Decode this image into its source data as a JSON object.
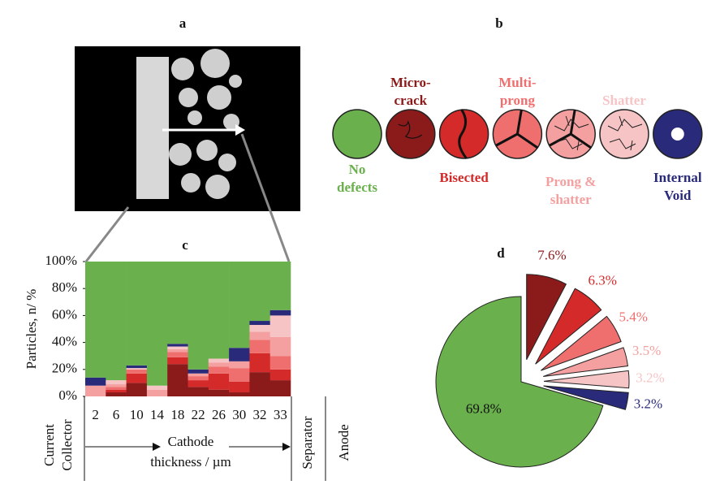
{
  "panel_labels": [
    "a",
    "b",
    "c",
    "d"
  ],
  "defect_types": [
    {
      "lines": [
        "No",
        "defects"
      ],
      "color": "#6ab04c"
    },
    {
      "lines": [
        "Micro-",
        "crack"
      ],
      "color": "#8b1a1a"
    },
    {
      "lines": [
        "Bisected"
      ],
      "color": "#d42a2a"
    },
    {
      "lines": [
        "Multi-",
        "prong"
      ],
      "color": "#ef6f6f"
    },
    {
      "lines": [
        "Prong &",
        "shatter"
      ],
      "color": "#f4a0a0"
    },
    {
      "lines": [
        "Shatter"
      ],
      "color": "#f7c4c6"
    },
    {
      "lines": [
        "Internal",
        "Void"
      ],
      "color": "#2a2a7a"
    }
  ],
  "chart_data": [
    {
      "type": "bar",
      "stacked": true,
      "ylabel": "Particles, n/ %",
      "categories": [
        2,
        6,
        10,
        14,
        18,
        22,
        26,
        30,
        32,
        33
      ],
      "series": [
        {
          "color": "#8b1a1a",
          "values": [
            0,
            3,
            10,
            0,
            24,
            7,
            5,
            3,
            18,
            12
          ]
        },
        {
          "color": "#d42a2a",
          "values": [
            0,
            2,
            7,
            0,
            5,
            5,
            12,
            8,
            14,
            8
          ]
        },
        {
          "color": "#ef6f6f",
          "values": [
            0,
            2,
            3,
            0,
            4,
            3,
            5,
            10,
            10,
            10
          ]
        },
        {
          "color": "#f4a0a0",
          "values": [
            8,
            2,
            0,
            5,
            2,
            2,
            3,
            5,
            6,
            14
          ]
        },
        {
          "color": "#f7c4c6",
          "values": [
            0,
            3,
            1,
            3,
            2,
            0,
            3,
            0,
            5,
            16
          ]
        },
        {
          "color": "#2a2a7a",
          "values": [
            6,
            0,
            2,
            0,
            2,
            3,
            0,
            10,
            3,
            4
          ]
        },
        {
          "color": "#6ab04c",
          "values": [
            86,
            88,
            77,
            92,
            61,
            80,
            72,
            64,
            44,
            36
          ]
        }
      ],
      "ylim": [
        0,
        100
      ],
      "yticks": [
        {
          "value": 0,
          "label": "0%"
        },
        {
          "value": 20,
          "label": "20%"
        },
        {
          "value": 40,
          "label": "40%"
        },
        {
          "value": 60,
          "label": "60%"
        },
        {
          "value": 80,
          "label": "80%"
        },
        {
          "value": 100,
          "label": "100%"
        }
      ],
      "xlabel": [
        "Cathode",
        "thickness / µm"
      ],
      "annotations": {
        "current_collector": [
          "Current",
          "Collector"
        ],
        "separator": "Separator",
        "anode": "Anode"
      }
    },
    {
      "type": "pie",
      "values": [
        69.8,
        7.6,
        6.3,
        5.4,
        3.5,
        3.2,
        3.2
      ],
      "value_labels": [
        "69.8%",
        "7.6%",
        "6.3%",
        "5.4%",
        "3.5%",
        "3.2%",
        "3.2%"
      ],
      "colors": [
        "#6ab04c",
        "#8b1a1a",
        "#d42a2a",
        "#ef6f6f",
        "#f4a0a0",
        "#f7c4c6",
        "#2a2a7a"
      ]
    }
  ]
}
